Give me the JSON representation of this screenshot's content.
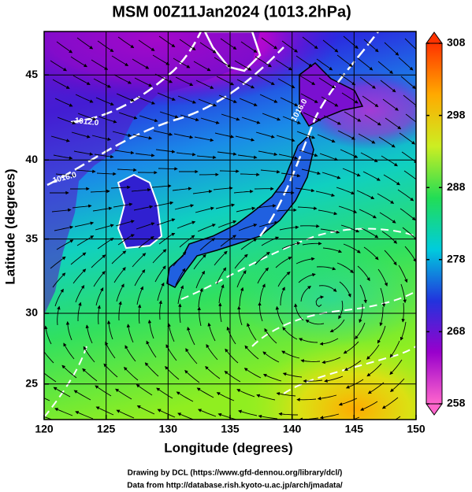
{
  "map": {
    "title": "MSM 00Z11Jan2024 (1013.2hPa)",
    "xlabel": "Longitude (degrees)",
    "ylabel": "Latitude  (degrees)",
    "projection": "mercator",
    "xlim": [
      120,
      150
    ],
    "ylim": [
      22.4,
      47.4
    ],
    "xticks": [
      120,
      125,
      130,
      135,
      140,
      145,
      150
    ],
    "yticks": [
      25,
      30,
      35,
      40,
      45
    ],
    "grid": true,
    "colorbar": {
      "lim": [
        258,
        308
      ],
      "ticks": [
        258,
        268,
        278,
        288,
        298,
        308
      ],
      "colors": [
        "#ff66cc",
        "#9900cc",
        "#2233dd",
        "#00ccdd",
        "#22dd55",
        "#ccee22",
        "#ffaa00",
        "#ff3300"
      ]
    },
    "contour_labels": [
      "1012.0",
      "1016.0",
      "1016.0"
    ],
    "credits": [
      "Drawing by DCL (https://www.gfd-dennou.org/library/dcl/)",
      "Data from http://database.rish.kyoto-u.ac.jp/arch/jmadata/"
    ]
  }
}
